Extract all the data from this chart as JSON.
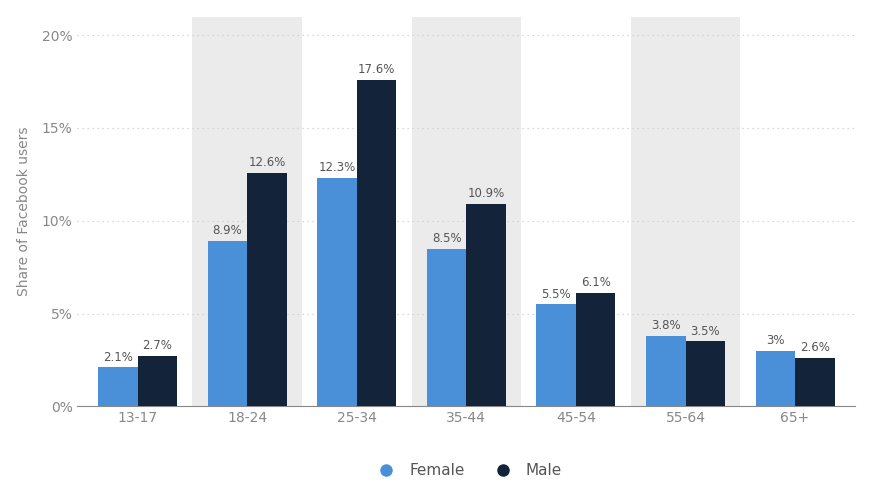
{
  "categories": [
    "13-17",
    "18-24",
    "25-34",
    "35-44",
    "45-54",
    "55-64",
    "65+"
  ],
  "female_values": [
    2.1,
    8.9,
    12.3,
    8.5,
    5.5,
    3.8,
    3.0
  ],
  "male_values": [
    2.7,
    12.6,
    17.6,
    10.9,
    6.1,
    3.5,
    2.6
  ],
  "female_labels": [
    "2.1%",
    "8.9%",
    "12.3%",
    "8.5%",
    "5.5%",
    "3.8%",
    "3%"
  ],
  "male_labels": [
    "2.7%",
    "12.6%",
    "17.6%",
    "10.9%",
    "6.1%",
    "3.5%",
    "2.6%"
  ],
  "female_color": "#4a90d9",
  "male_color": "#12233a",
  "ylabel": "Share of Facebook users",
  "yticks": [
    0,
    5,
    10,
    15,
    20
  ],
  "ytick_labels": [
    "0%",
    "5%",
    "10%",
    "15%",
    "20%"
  ],
  "ylim": [
    0,
    21
  ],
  "background_color": "#ffffff",
  "stripe_color": "#ebebeb",
  "stripe_indices": [
    1,
    3,
    5
  ],
  "legend_female": "Female",
  "legend_male": "Male",
  "bar_width": 0.36,
  "label_fontsize": 8.5,
  "axis_fontsize": 10,
  "legend_fontsize": 11,
  "tick_color": "#888888",
  "grid_color": "#cccccc",
  "spine_color": "#888888"
}
